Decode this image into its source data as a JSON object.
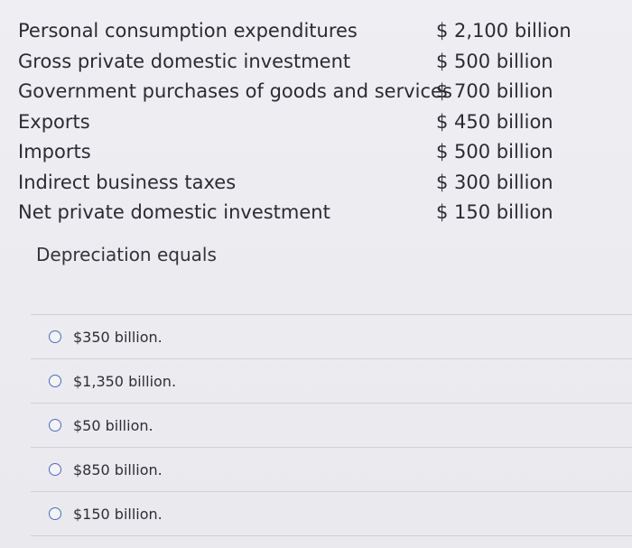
{
  "data_table": {
    "rows": [
      {
        "label": "Personal consumption expenditures",
        "value": "$ 2,100 billion"
      },
      {
        "label": "Gross private domestic investment",
        "value": "$ 500 billion"
      },
      {
        "label": "Government purchases of goods and services",
        "value": "$ 700 billion"
      },
      {
        "label": "Exports",
        "value": "$ 450 billion"
      },
      {
        "label": "Imports",
        "value": "$ 500 billion"
      },
      {
        "label": "Indirect business taxes",
        "value": "$ 300 billion"
      },
      {
        "label": "Net private domestic investment",
        "value": "$ 150 billion"
      }
    ]
  },
  "question": {
    "prompt": "Depreciation equals"
  },
  "options": [
    {
      "label": "$350 billion."
    },
    {
      "label": "$1,350 billion."
    },
    {
      "label": "$50 billion."
    },
    {
      "label": "$850 billion."
    },
    {
      "label": "$150 billion."
    }
  ],
  "colors": {
    "background": "#ededf1",
    "radio_border": "#4a6cc4",
    "divider": "#cfcfd6"
  }
}
